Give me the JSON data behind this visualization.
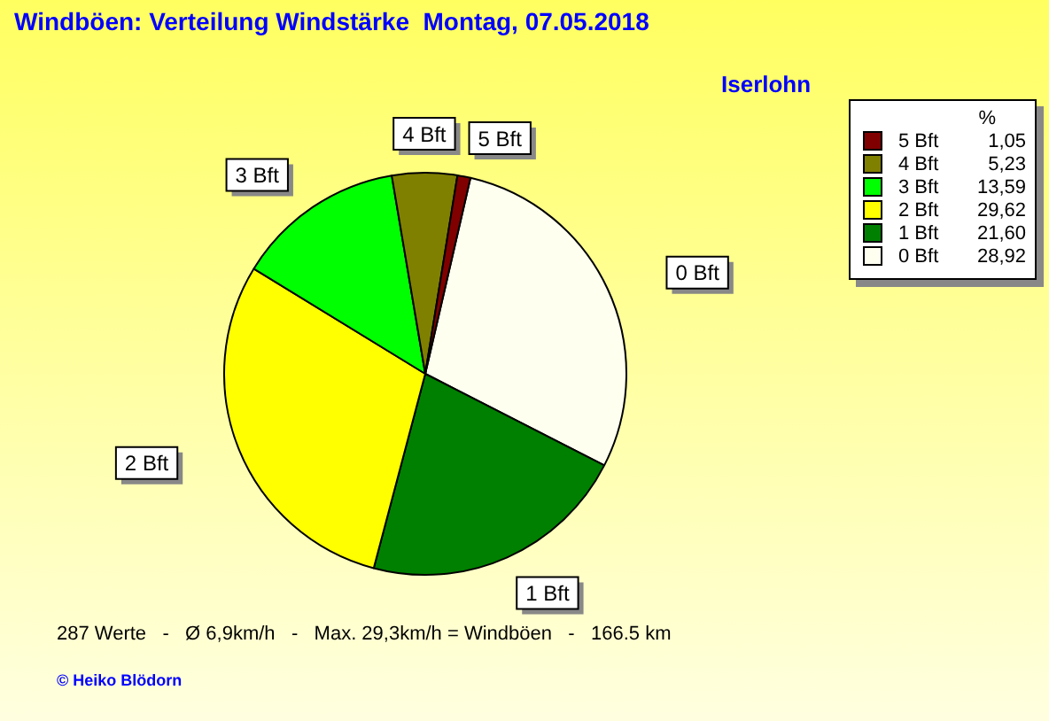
{
  "chart_data": {
    "type": "pie",
    "title": "Windböen: Verteilung Windstärke  Montag, 07.05.2018",
    "subtitle": "Iserlohn",
    "categories": [
      "0 Bft",
      "1 Bft",
      "2 Bft",
      "3 Bft",
      "4 Bft",
      "5 Bft"
    ],
    "values": [
      28.92,
      21.6,
      29.62,
      13.59,
      5.23,
      1.05
    ],
    "value_labels": [
      "28,92",
      "21,60",
      "29,62",
      "13,59",
      "5,23",
      "1,05"
    ],
    "colors": [
      "#fffff0",
      "#008000",
      "#ffff00",
      "#00ff00",
      "#808000",
      "#800000"
    ],
    "legend": "top right",
    "legend_title": "%",
    "annotations": [
      "287 Werte   -   Ø 6,9km/h   -   Max. 29,3km/h = Windböen   -   166.5 km",
      "© Heiko Blödorn"
    ]
  }
}
